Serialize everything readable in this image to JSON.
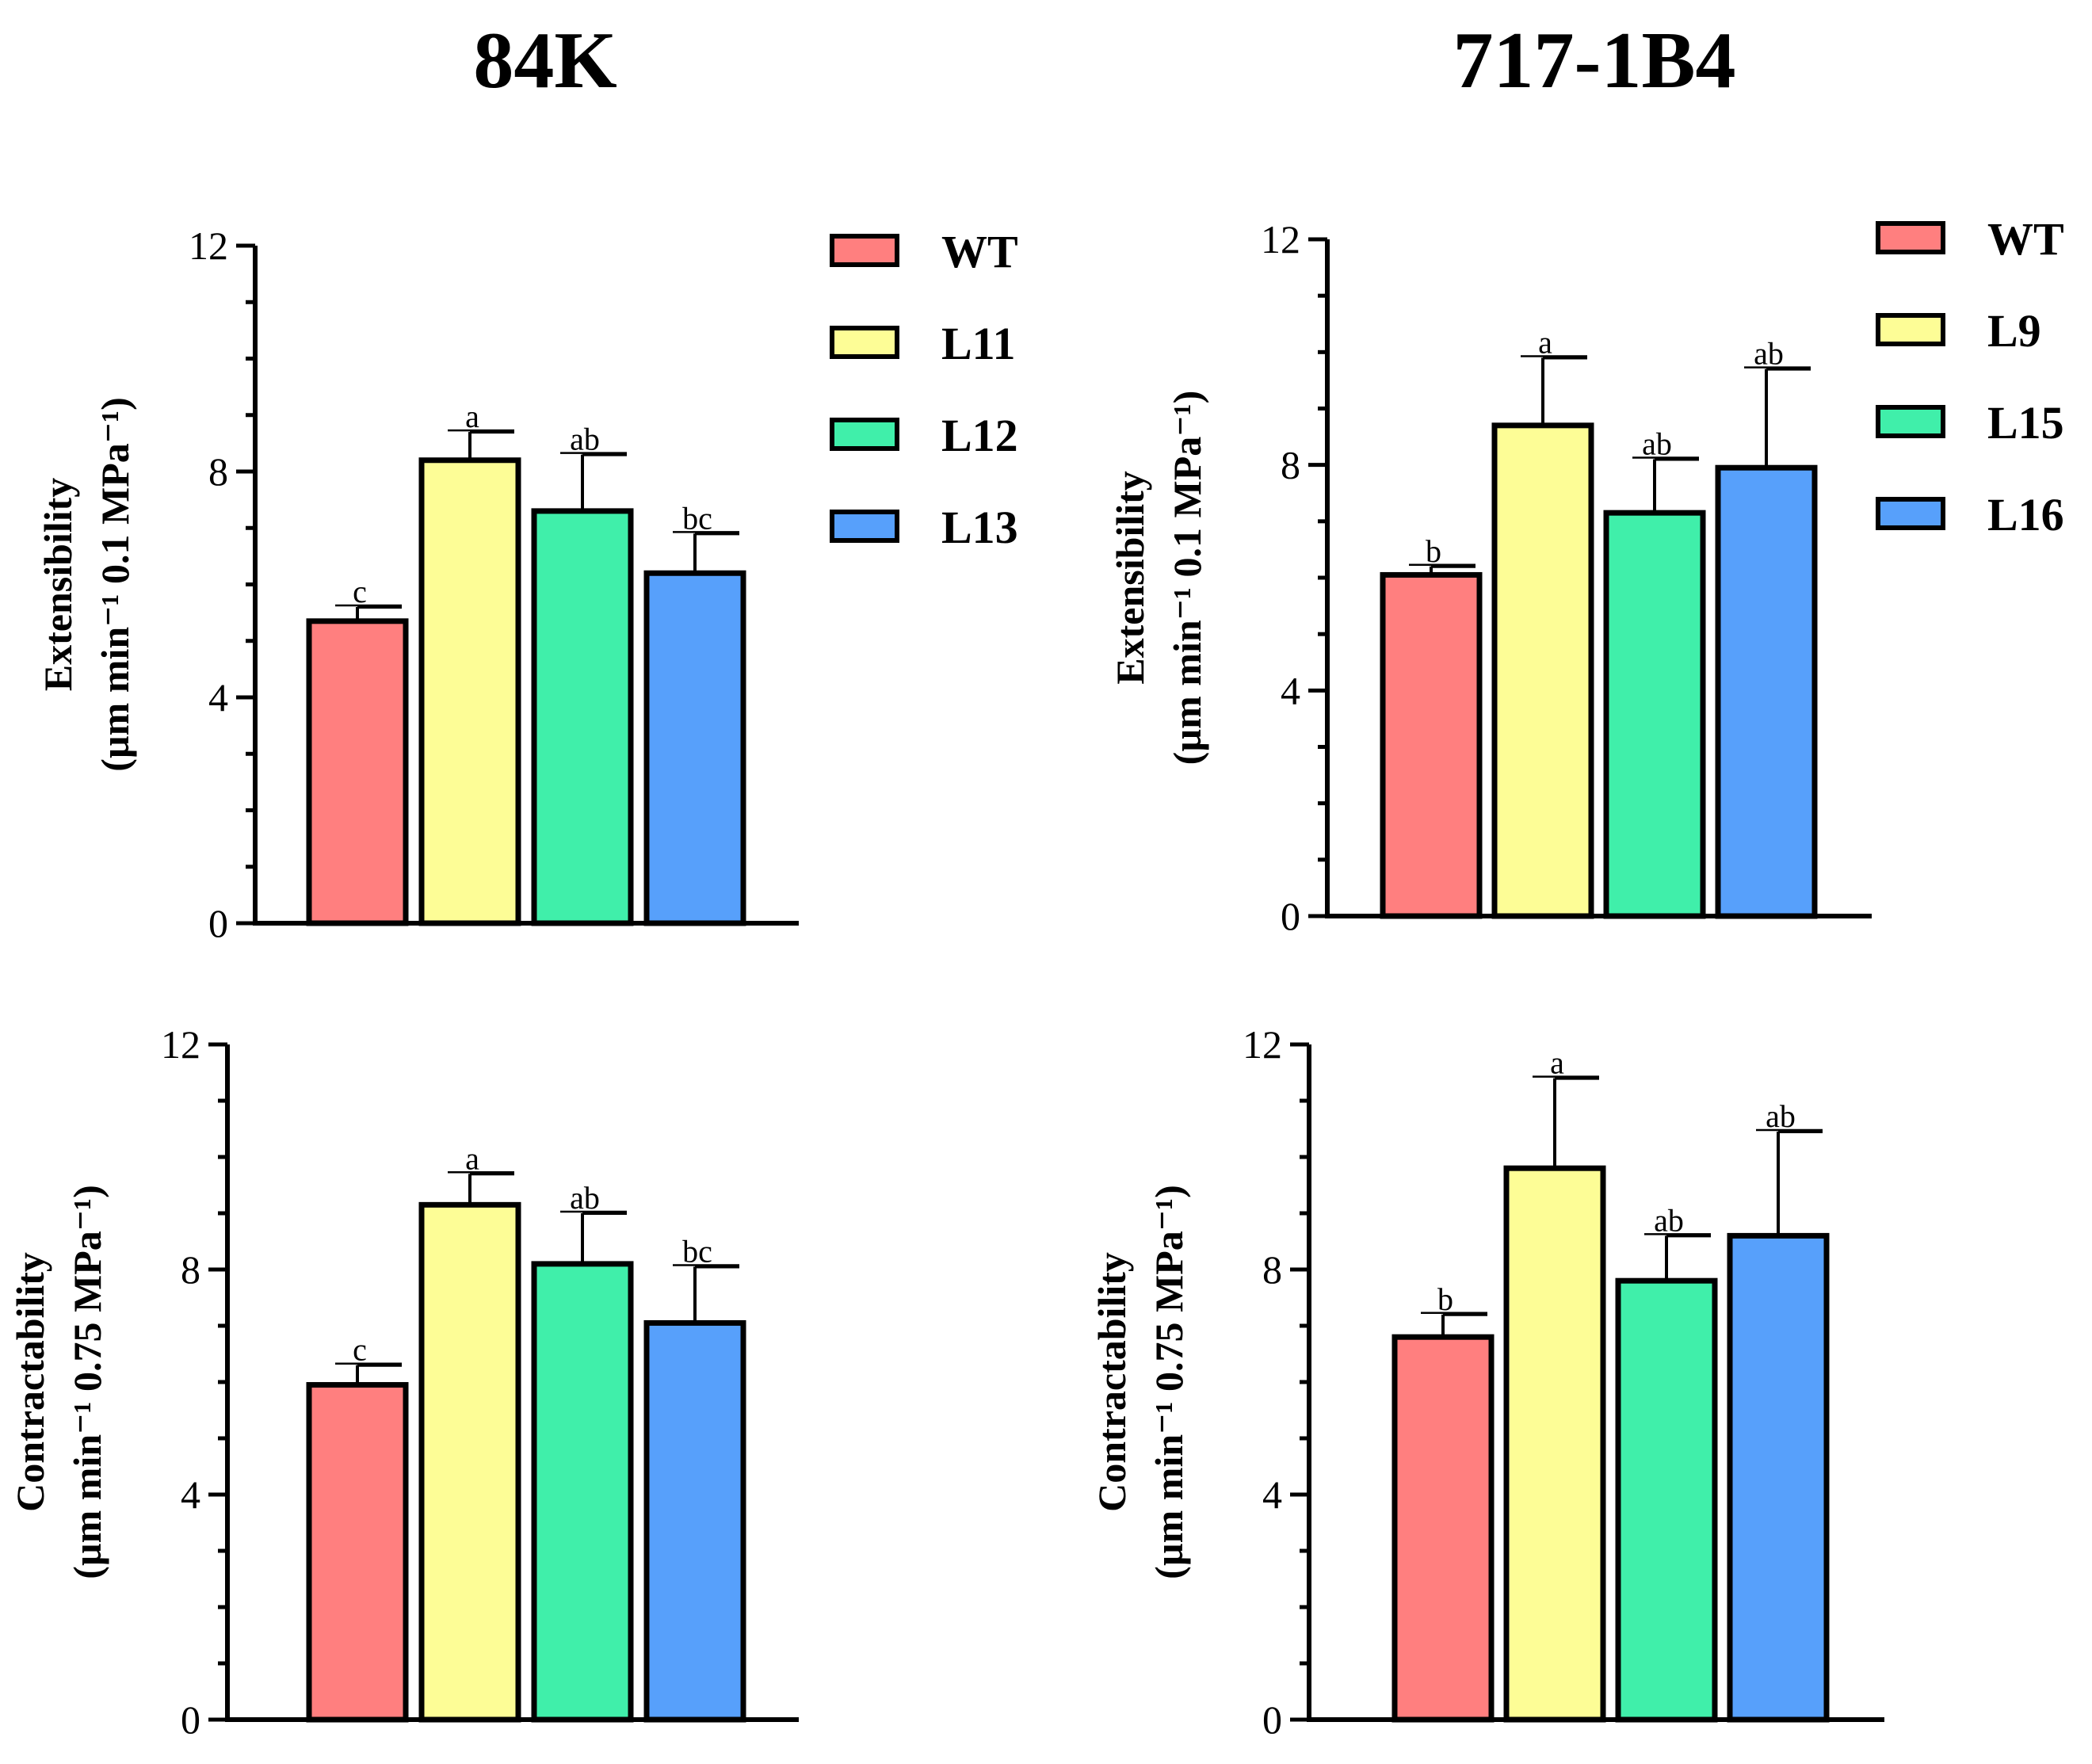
{
  "column_titles": [
    "84K",
    "717-1B4"
  ],
  "legends": [
    {
      "entries": [
        {
          "label": "WT",
          "color": "#ff7f7f"
        },
        {
          "label": "L11",
          "color": "#fdfd96"
        },
        {
          "label": "L12",
          "color": "#40efaa"
        },
        {
          "label": "L13",
          "color": "#57a0fb"
        }
      ]
    },
    {
      "entries": [
        {
          "label": "WT",
          "color": "#ff7f7f"
        },
        {
          "label": "L9",
          "color": "#fdfd96"
        },
        {
          "label": "L15",
          "color": "#40efaa"
        },
        {
          "label": "L16",
          "color": "#57a0fb"
        }
      ]
    }
  ],
  "chart_data": [
    {
      "type": "bar",
      "title": "84K",
      "ylabel_line1": "Extensibility",
      "ylabel_line2": "(µm min⁻¹ 0.1 MPa⁻¹)",
      "ylim": [
        0,
        12
      ],
      "yticks": [
        "0",
        "4",
        "8",
        "12"
      ],
      "categories": [
        "WT",
        "L11",
        "L12",
        "L13"
      ],
      "colors": [
        "#ff7f7f",
        "#fdfd96",
        "#40efaa",
        "#57a0fb"
      ],
      "values": [
        5.35,
        8.2,
        7.3,
        6.2
      ],
      "errors": [
        0.25,
        0.5,
        1.0,
        0.7
      ],
      "significance": [
        "c",
        "a",
        "ab",
        "bc"
      ]
    },
    {
      "type": "bar",
      "title": "717-1B4",
      "ylabel_line1": "Extensibility",
      "ylabel_line2": "(µm min⁻¹ 0.1 MPa⁻¹)",
      "ylim": [
        0,
        12
      ],
      "yticks": [
        "0",
        "4",
        "8",
        "12"
      ],
      "categories": [
        "WT",
        "L9",
        "L15",
        "L16"
      ],
      "colors": [
        "#ff7f7f",
        "#fdfd96",
        "#40efaa",
        "#57a0fb"
      ],
      "values": [
        6.05,
        8.7,
        7.15,
        7.95
      ],
      "errors": [
        0.15,
        1.2,
        0.95,
        1.75
      ],
      "significance": [
        "b",
        "a",
        "ab",
        "ab"
      ]
    },
    {
      "type": "bar",
      "title": "84K",
      "ylabel_line1": "Contractability",
      "ylabel_line2": "(µm min⁻¹ 0.75 MPa⁻¹)",
      "ylim": [
        0,
        12
      ],
      "yticks": [
        "0",
        "4",
        "8",
        "12"
      ],
      "categories": [
        "WT",
        "L11",
        "L12",
        "L13"
      ],
      "colors": [
        "#ff7f7f",
        "#fdfd96",
        "#40efaa",
        "#57a0fb"
      ],
      "values": [
        5.95,
        9.15,
        8.1,
        7.05
      ],
      "errors": [
        0.35,
        0.55,
        0.9,
        1.0
      ],
      "significance": [
        "c",
        "a",
        "ab",
        "bc"
      ]
    },
    {
      "type": "bar",
      "title": "717-1B4",
      "ylabel_line1": "Contractability",
      "ylabel_line2": "(µm min⁻¹ 0.75 MPa⁻¹)",
      "ylim": [
        0,
        12
      ],
      "yticks": [
        "0",
        "4",
        "8",
        "12"
      ],
      "categories": [
        "WT",
        "L9",
        "L15",
        "L16"
      ],
      "colors": [
        "#ff7f7f",
        "#fdfd96",
        "#40efaa",
        "#57a0fb"
      ],
      "values": [
        6.8,
        9.8,
        7.8,
        8.6
      ],
      "errors": [
        0.4,
        1.6,
        0.8,
        1.85
      ],
      "significance": [
        "b",
        "a",
        "ab",
        "ab"
      ]
    }
  ]
}
